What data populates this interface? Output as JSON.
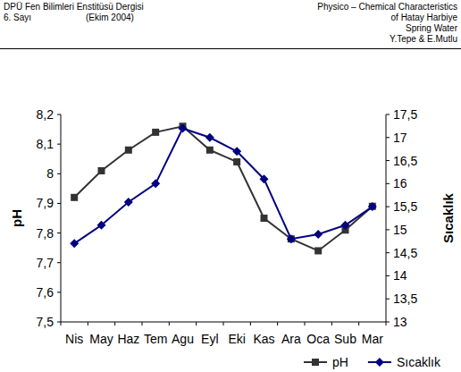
{
  "header": {
    "left": [
      "DPÜ Fen Bilimleri Enstitüsü Dergisi",
      "6. Sayı",
      "(Ekim 2004)"
    ],
    "right": [
      "Physico – Chemical Characteristics",
      "of  Hatay  Harbiye",
      "Spring Water",
      "Y.Tepe & E.Mutlu"
    ]
  },
  "chart_data": {
    "type": "line",
    "categories": [
      "Nis",
      "May",
      "Haz",
      "Tem",
      "Agu",
      "Eyl",
      "Eki",
      "Kas",
      "Ara",
      "Oca",
      "Sub",
      "Mar"
    ],
    "y_label": "pH",
    "y2_label": "Sıcaklık",
    "series": [
      {
        "name": "pH",
        "color": "#333333",
        "marker": "square",
        "values": [
          7.92,
          8.01,
          8.08,
          8.14,
          8.16,
          8.08,
          8.04,
          7.85,
          7.78,
          7.74,
          7.81,
          7.89
        ]
      },
      {
        "name": "Sıcaklık",
        "color": "#000080",
        "marker": "diamond",
        "axis": "y2",
        "values": [
          14.7,
          15.1,
          15.6,
          16.0,
          17.2,
          17.0,
          16.7,
          16.1,
          14.8,
          14.9,
          15.1,
          15.5
        ]
      }
    ],
    "ylim": [
      7.5,
      8.2
    ],
    "yticks": [
      {
        "value": 7.5,
        "label": "7,5"
      },
      {
        "value": 7.6,
        "label": "7,6"
      },
      {
        "value": 7.7,
        "label": "7,7"
      },
      {
        "value": 7.8,
        "label": "7,8"
      },
      {
        "value": 7.9,
        "label": "7,9"
      },
      8,
      {
        "value": 8.1,
        "label": "8,1"
      },
      {
        "value": 8.2,
        "label": "8,2"
      }
    ],
    "y2lim": [
      13,
      17.5
    ],
    "y2ticks": [
      13,
      {
        "value": 13.5,
        "label": "13,5"
      },
      14,
      {
        "value": 14.5,
        "label": "14,5"
      },
      15,
      {
        "value": 15.5,
        "label": "15,5"
      },
      16,
      {
        "value": 16.5,
        "label": "16,5"
      },
      17,
      {
        "value": 17.5,
        "label": "17,5"
      }
    ],
    "grid": false,
    "legend": "bottom"
  }
}
